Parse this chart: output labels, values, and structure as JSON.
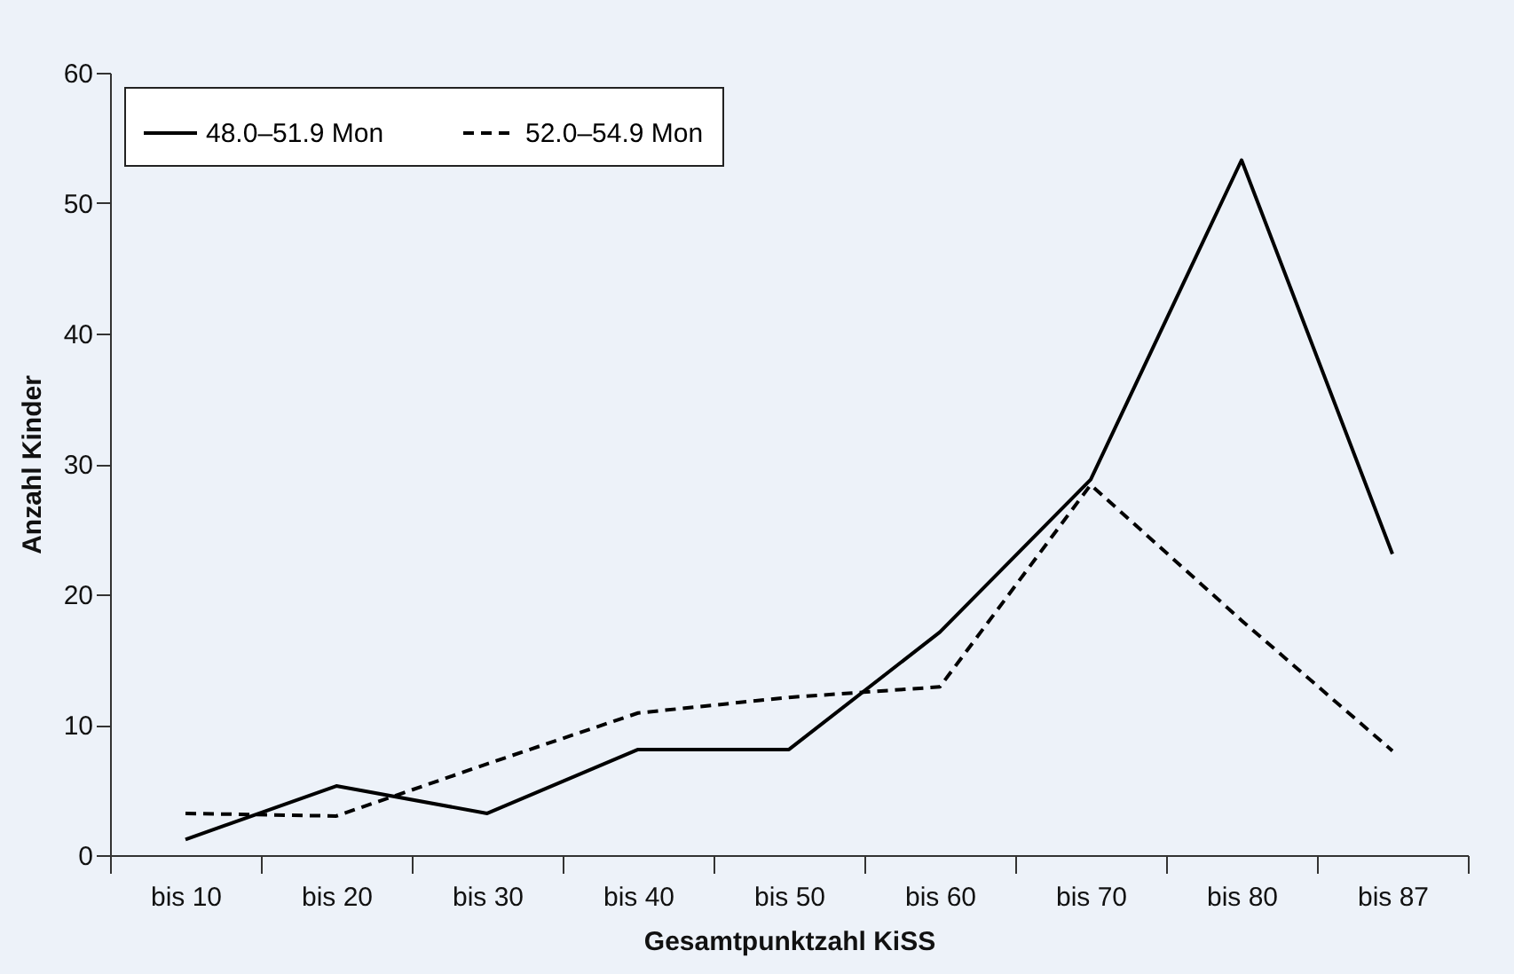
{
  "chart_data": {
    "type": "line",
    "xlabel": "Gesamtpunktzahl KiSS",
    "ylabel": "Anzahl Kinder",
    "categories": [
      "bis 10",
      "bis 20",
      "bis 30",
      "bis 40",
      "bis 50",
      "bis 60",
      "bis 70",
      "bis 80",
      "bis 87"
    ],
    "series": [
      {
        "name": "48.0–51.9 Mon",
        "color": "#000000",
        "line_style": "solid",
        "values": [
          1.2,
          5.3,
          3.2,
          8.1,
          8.1,
          17.1,
          28.8,
          53.3,
          23.1
        ]
      },
      {
        "name": "52.0–54.9 Mon",
        "color": "#000000",
        "line_style": "dashed",
        "values": [
          3.2,
          3.0,
          7.0,
          10.9,
          12.1,
          12.9,
          28.4,
          18.0,
          8.0
        ]
      }
    ],
    "ylim": [
      0,
      60
    ],
    "yticks": [
      0,
      10,
      20,
      30,
      40,
      50,
      60
    ],
    "grid": false,
    "legend": "top left",
    "marker": "none"
  }
}
